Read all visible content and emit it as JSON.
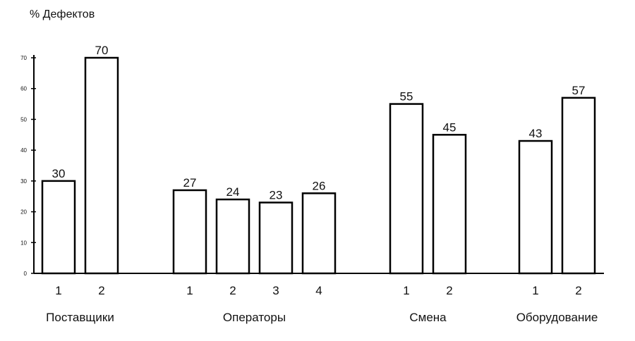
{
  "chart_data": {
    "type": "bar",
    "ylabel": "% Дефектов",
    "ylim": [
      0,
      70
    ],
    "yticks": [
      0,
      10,
      20,
      30,
      40,
      50,
      60,
      70
    ],
    "grid": false,
    "groups": [
      {
        "name": "Поставщики",
        "categories": [
          "1",
          "2"
        ],
        "values": [
          30,
          70
        ]
      },
      {
        "name": "Операторы",
        "categories": [
          "1",
          "2",
          "3",
          "4"
        ],
        "values": [
          27,
          24,
          23,
          26
        ]
      },
      {
        "name": "Смена",
        "categories": [
          "1",
          "2"
        ],
        "values": [
          55,
          45
        ]
      },
      {
        "name": "Оборудование",
        "categories": [
          "1",
          "2"
        ],
        "values": [
          43,
          57
        ]
      }
    ]
  }
}
